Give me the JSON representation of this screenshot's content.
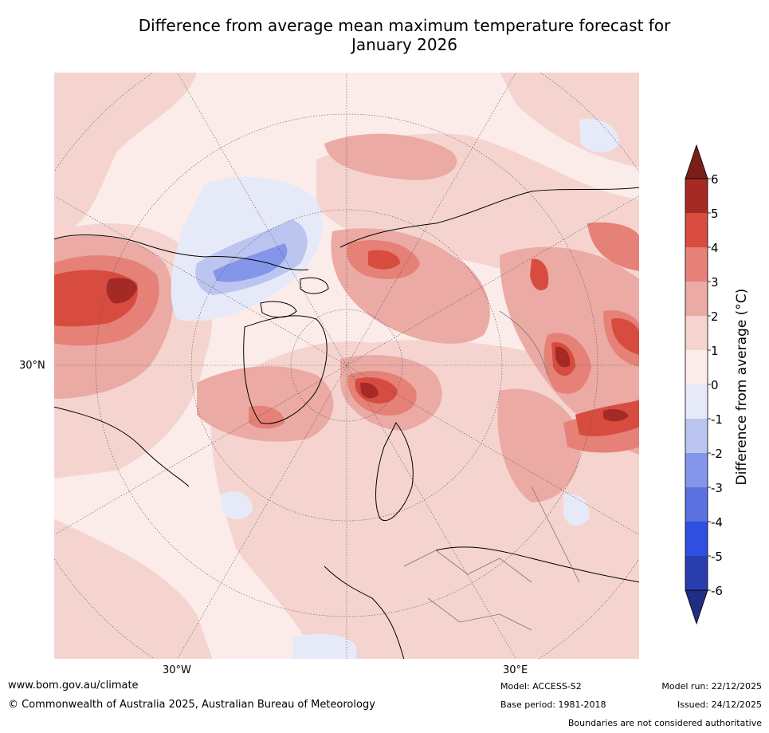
{
  "title_line1": "Difference from average mean maximum temperature forecast for",
  "title_line2": "January 2026",
  "axis_labels": {
    "lat_30n": "30°N",
    "lon_30w": "30°W",
    "lon_30e": "30°E"
  },
  "colorbar": {
    "label": "Difference from average (°C)",
    "ticks": [
      "6",
      "5",
      "4",
      "3",
      "2",
      "1",
      "0",
      "-1",
      "-2",
      "-3",
      "-4",
      "-5",
      "-6"
    ],
    "colors": {
      "above_6": "#7a1e1a",
      "5_6": "#a52a25",
      "4_5": "#d84c40",
      "3_4": "#e58177",
      "2_3": "#ebaaa4",
      "1_2": "#f5d4d0",
      "0_1": "#fbecea",
      "m1_0": "#e6eaf8",
      "m2_m1": "#bcc5ef",
      "m3_m2": "#8496ea",
      "m4_m3": "#5b71e0",
      "m5_m4": "#2f4fe0",
      "m6_m5": "#2a3dac",
      "below_m6": "#1f2d85"
    }
  },
  "footer": {
    "url": "www.bom.gov.au/climate",
    "copyright": "© Commonwealth of Australia 2025, Australian Bureau of Meteorology",
    "model": "Model: ACCESS-S2",
    "base_period": "Base period: 1981-2018",
    "model_run": "Model run: 22/12/2025",
    "issued": "Issued: 24/12/2025",
    "boundaries": "Boundaries are not considered authoritative"
  }
}
